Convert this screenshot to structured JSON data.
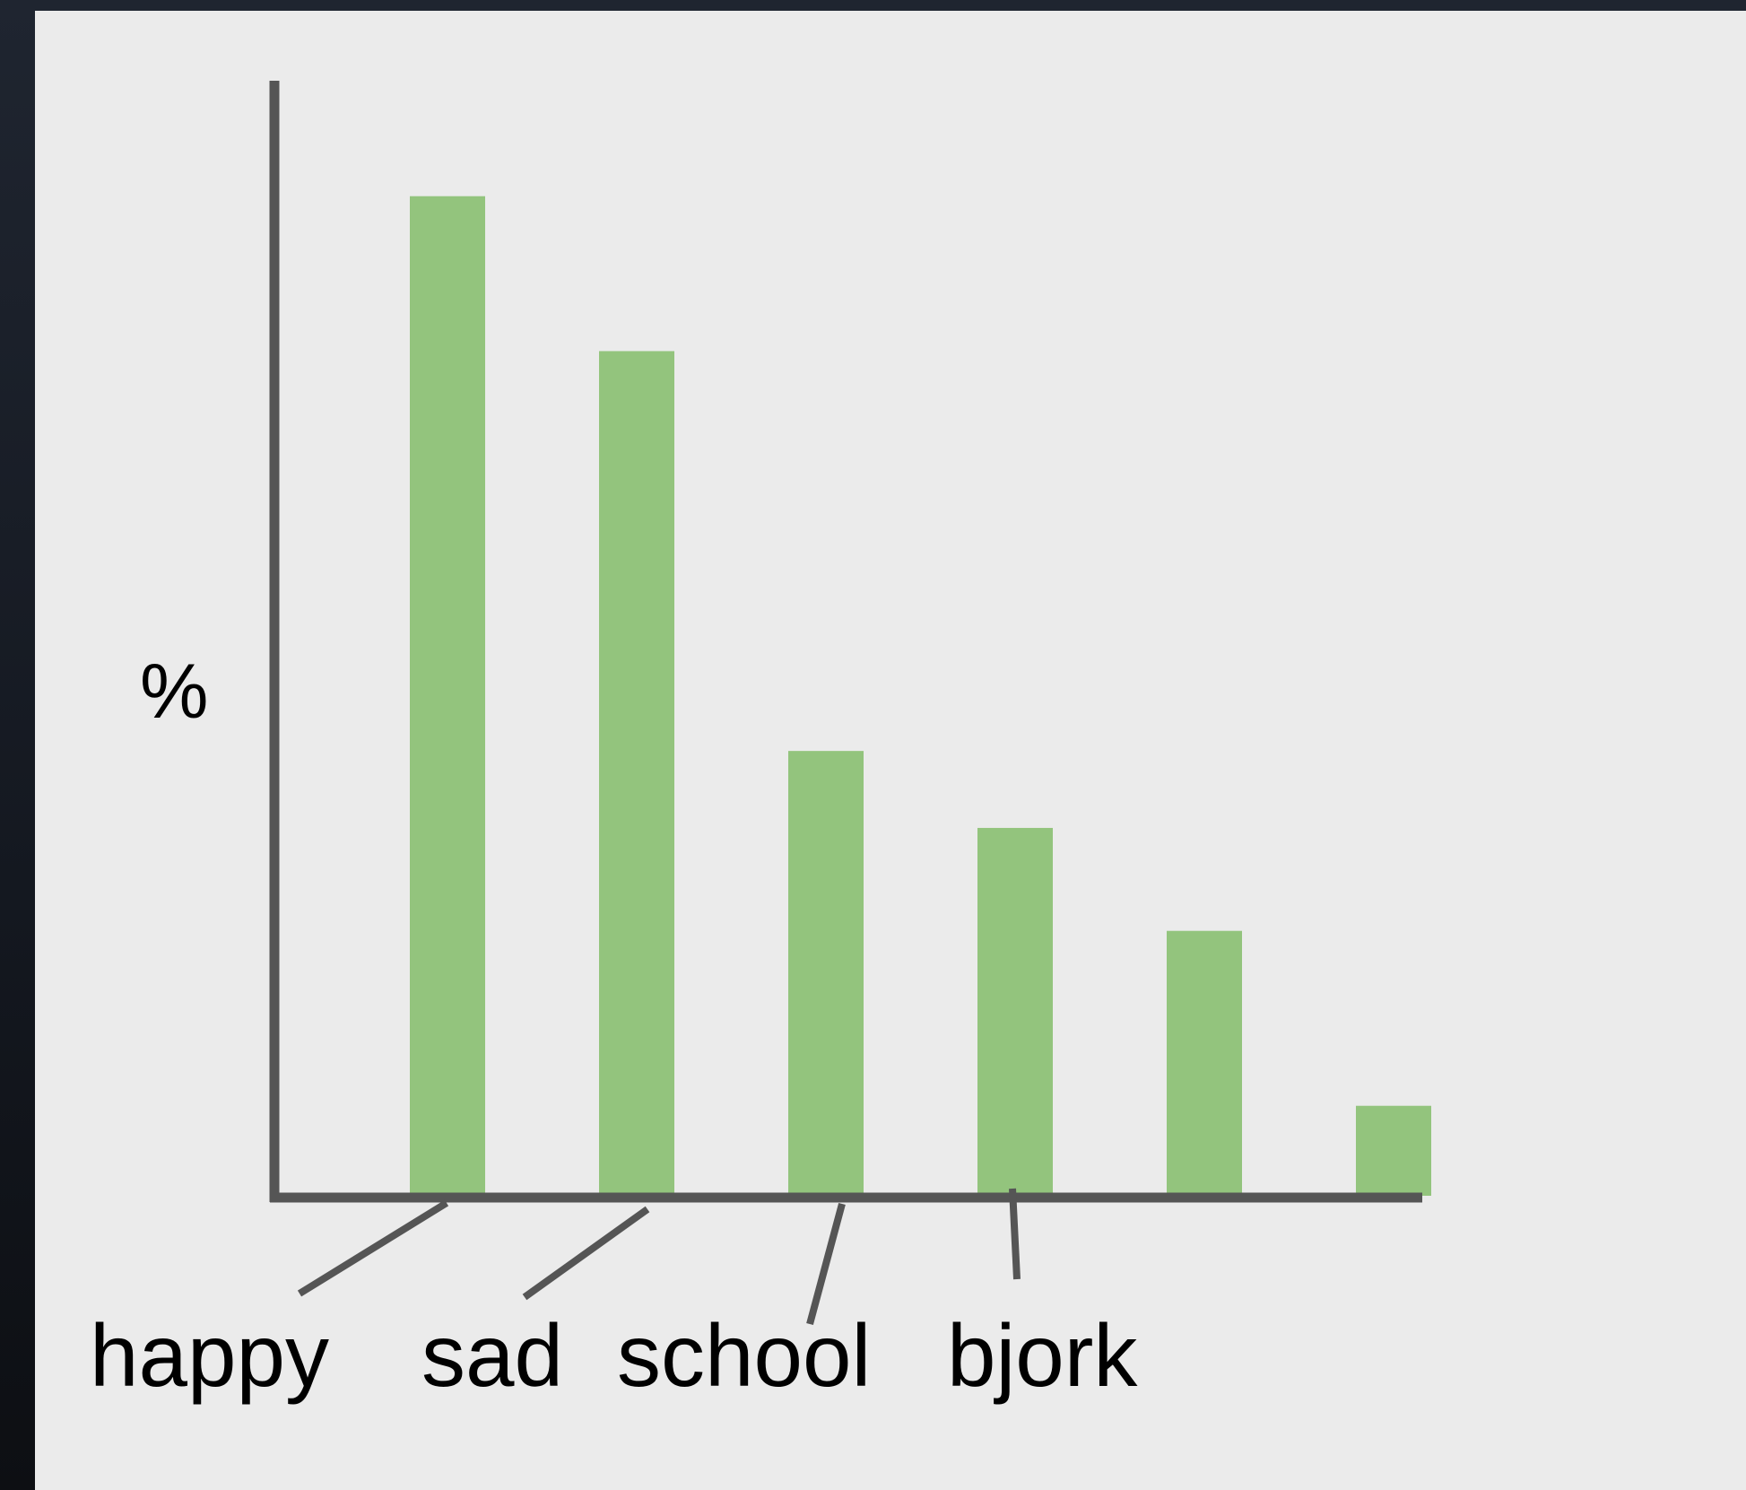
{
  "chart_data": {
    "type": "bar",
    "title": "",
    "xlabel": "",
    "ylabel": "%",
    "categories": [
      "happy",
      "sad",
      "school",
      "bjork",
      "",
      ""
    ],
    "values": [
      100,
      84.5,
      44.5,
      36.8,
      26.5,
      9
    ],
    "ylim": [
      0,
      112
    ],
    "bar_color": "#93c47d",
    "axis_color": "#555555",
    "grid": false,
    "legend": "none",
    "tick_values_shown": false
  }
}
